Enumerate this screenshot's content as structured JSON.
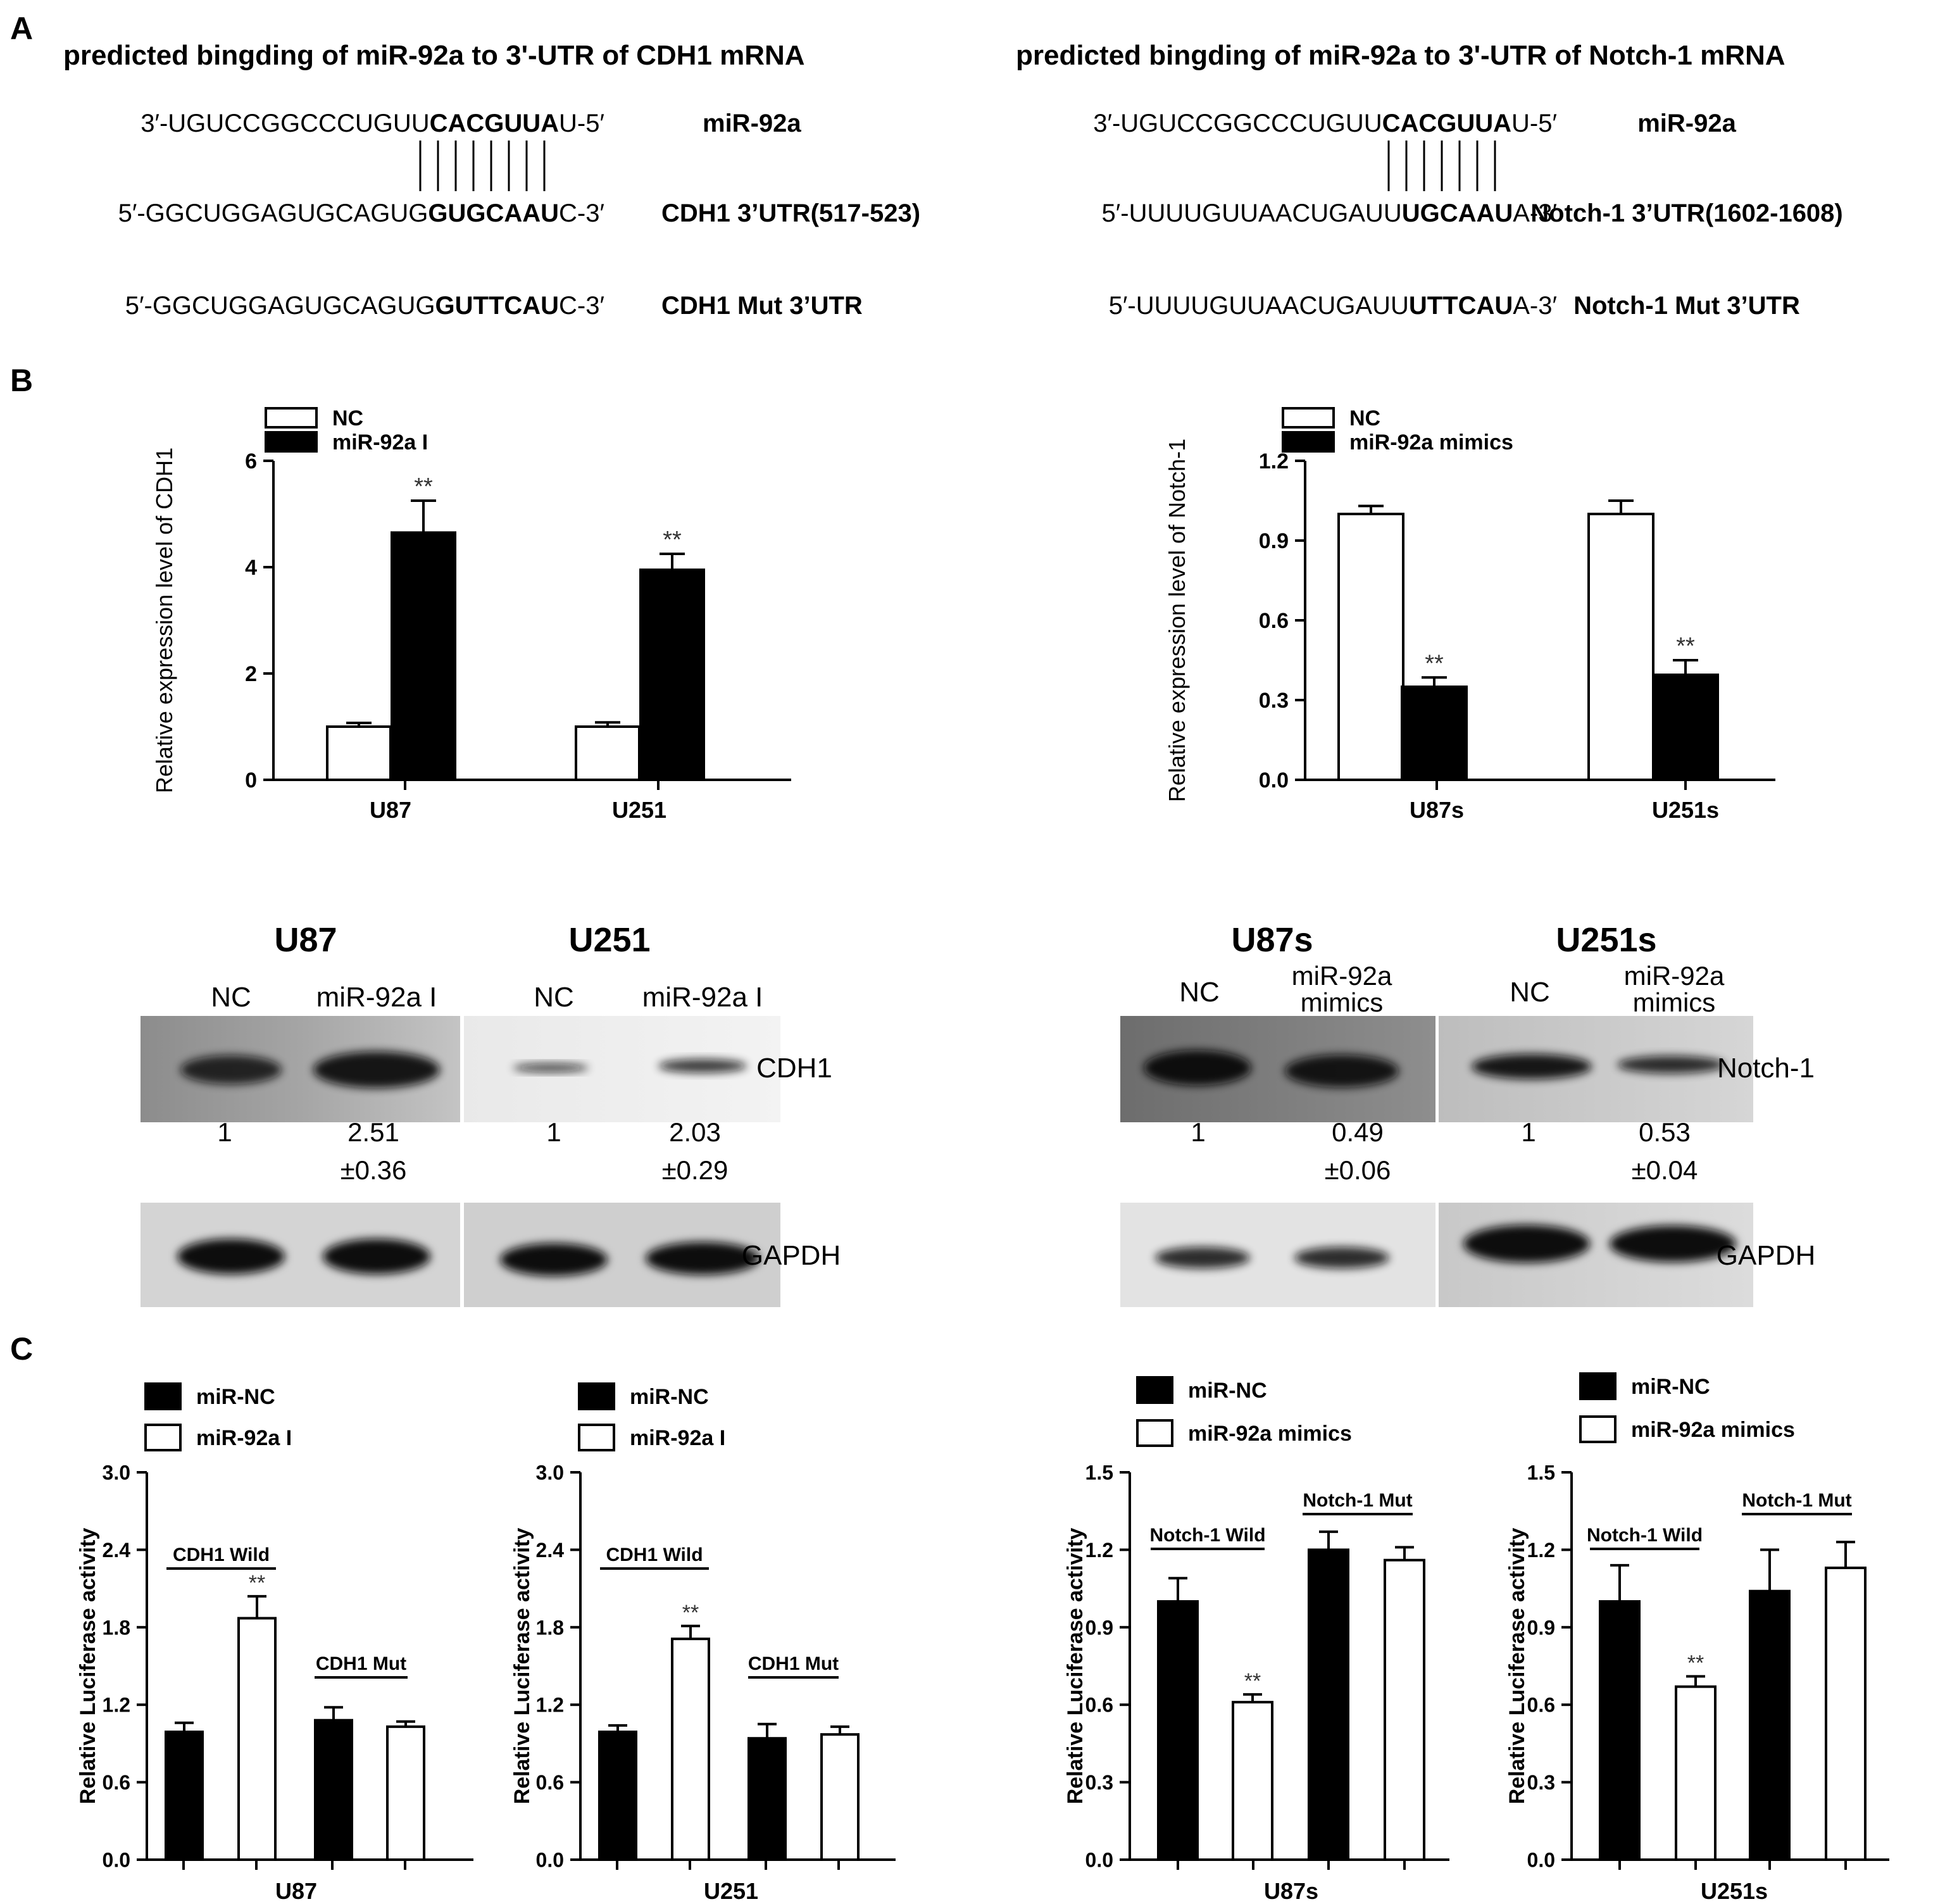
{
  "panel_labels": [
    "A",
    "B",
    "C"
  ],
  "panelA": [
    {
      "title": "predicted bingding of miR-92a to 3'-UTR of CDH1 mRNA",
      "rows": [
        {
          "pre": "3′-UGUCCGGCCCUGUU",
          "bold": "CACGUUA",
          "post": "U-5′",
          "label": "miR-92a"
        },
        {
          "pre": "5′-GGCUGGAGUGCAGUG",
          "bold": "GUGCAAU",
          "post": "C-3′",
          "label": "CDH1 3’UTR(517-523)"
        },
        {
          "pre": "5′-GGCUGGAGUGCAGUG",
          "bold": "GUTTCAU",
          "post": "C-3′",
          "label": "CDH1 Mut 3’UTR"
        }
      ]
    },
    {
      "title": "predicted bingding of miR-92a to 3'-UTR of Notch-1 mRNA",
      "rows": [
        {
          "pre": "3′-UGUCCGGCCCUGUU",
          "bold": "CACGUUA",
          "post": "U-5′",
          "label": "miR-92a"
        },
        {
          "pre": "5′-UUUUGUUAACUGAUU",
          "bold": "UGCAAU",
          "post": "A-3′",
          "label": "Notch-1 3’UTR(1602-1608)"
        },
        {
          "pre": "5′-UUUUGUUAACUGAUU",
          "bold": "UTTCAU",
          "post": "A-3′",
          "label": "Notch-1 Mut 3’UTR"
        }
      ]
    }
  ],
  "western_blots": [
    {
      "cell_lines": [
        {
          "name": "U87",
          "lanes": [
            "NC",
            "miR-92a I"
          ],
          "quant": [
            "1",
            "2.51",
            "±0.36"
          ]
        },
        {
          "name": "U251",
          "lanes": [
            "NC",
            "miR-92a I"
          ],
          "quant": [
            "1",
            "2.03",
            "±0.29"
          ]
        }
      ],
      "target_label": "CDH1",
      "control_label": "GAPDH"
    },
    {
      "cell_lines": [
        {
          "name": "U87s",
          "lanes": [
            "NC",
            "miR-92a mimics"
          ],
          "quant": [
            "1",
            "0.49",
            "±0.06"
          ]
        },
        {
          "name": "U251s",
          "lanes": [
            "NC",
            "miR-92a mimics"
          ],
          "quant": [
            "1",
            "0.53",
            "±0.04"
          ]
        }
      ],
      "target_label": "Notch-1",
      "control_label": "GAPDH"
    }
  ],
  "chart_data": [
    {
      "id": "B1",
      "type": "bar",
      "categories": [
        "U87",
        "U251"
      ],
      "ylabel": "Relative expression level of CDH1",
      "ylim": [
        0,
        6
      ],
      "yticks": [
        "0",
        "2",
        "4",
        "6"
      ],
      "series": [
        {
          "name": "NC",
          "fill": "#ffffff",
          "values": [
            1.0,
            1.0
          ],
          "errors": [
            0.07,
            0.08
          ]
        },
        {
          "name": "miR-92a I",
          "fill": "#000000",
          "values": [
            4.65,
            3.95
          ],
          "errors": [
            0.6,
            0.3
          ]
        }
      ],
      "significance": [
        {
          "category": "U87",
          "series": "miR-92a I",
          "label": "**"
        },
        {
          "category": "U251",
          "series": "miR-92a I",
          "label": "**"
        }
      ]
    },
    {
      "id": "B2",
      "type": "bar",
      "categories": [
        "U87s",
        "U251s"
      ],
      "ylabel": "Relative expression level of Notch-1",
      "ylim": [
        0,
        1.2
      ],
      "yticks": [
        "0.0",
        "0.3",
        "0.6",
        "0.9",
        "1.2"
      ],
      "series": [
        {
          "name": "NC",
          "fill": "#ffffff",
          "values": [
            1.0,
            1.0
          ],
          "errors": [
            0.03,
            0.05
          ]
        },
        {
          "name": "miR-92a mimics",
          "fill": "#000000",
          "values": [
            0.35,
            0.395
          ],
          "errors": [
            0.035,
            0.055
          ]
        }
      ],
      "significance": [
        {
          "category": "U87s",
          "series": "miR-92a mimics",
          "label": "**"
        },
        {
          "category": "U251s",
          "series": "miR-92a mimics",
          "label": "**"
        }
      ]
    },
    {
      "id": "C1",
      "type": "bar",
      "categories": [
        "CDH1 Wild",
        "CDH1 Mut"
      ],
      "xlabel": "U87",
      "ylabel": "Relative Luciferase activity",
      "ylim": [
        0,
        3.0
      ],
      "yticks": [
        "0.0",
        "0.6",
        "1.2",
        "1.8",
        "2.4",
        "3.0"
      ],
      "series": [
        {
          "name": "miR-NC",
          "fill": "#000000",
          "values": [
            0.99,
            1.08
          ],
          "errors": [
            0.07,
            0.1
          ]
        },
        {
          "name": "miR-92a I",
          "fill": "#ffffff",
          "values": [
            1.87,
            1.03
          ],
          "errors": [
            0.17,
            0.04
          ]
        }
      ],
      "significance": [
        {
          "category": "CDH1 Wild",
          "series": "miR-92a I",
          "label": "**"
        }
      ]
    },
    {
      "id": "C2",
      "type": "bar",
      "categories": [
        "CDH1 Wild",
        "CDH1 Mut"
      ],
      "xlabel": "U251",
      "ylabel": "Relative Luciferase activity",
      "ylim": [
        0,
        3.0
      ],
      "yticks": [
        "0.0",
        "0.6",
        "1.2",
        "1.8",
        "2.4",
        "3.0"
      ],
      "series": [
        {
          "name": "miR-NC",
          "fill": "#000000",
          "values": [
            0.99,
            0.94
          ],
          "errors": [
            0.05,
            0.11
          ]
        },
        {
          "name": "miR-92a I",
          "fill": "#ffffff",
          "values": [
            1.71,
            0.97
          ],
          "errors": [
            0.1,
            0.06
          ]
        }
      ],
      "significance": [
        {
          "category": "CDH1 Wild",
          "series": "miR-92a I",
          "label": "**"
        }
      ]
    },
    {
      "id": "C3",
      "type": "bar",
      "categories": [
        "Notch-1 Wild",
        "Notch-1 Mut"
      ],
      "xlabel": "U87s",
      "ylabel": "Relative Luciferase activity",
      "ylim": [
        0,
        1.5
      ],
      "yticks": [
        "0.0",
        "0.3",
        "0.6",
        "0.9",
        "1.2",
        "1.5"
      ],
      "series": [
        {
          "name": "miR-NC",
          "fill": "#000000",
          "values": [
            1.0,
            1.2
          ],
          "errors": [
            0.09,
            0.07
          ]
        },
        {
          "name": "miR-92a mimics",
          "fill": "#ffffff",
          "values": [
            0.61,
            1.16
          ],
          "errors": [
            0.03,
            0.05
          ]
        }
      ],
      "significance": [
        {
          "category": "Notch-1 Wild",
          "series": "miR-92a mimics",
          "label": "**"
        }
      ]
    },
    {
      "id": "C4",
      "type": "bar",
      "categories": [
        "Notch-1 Wild",
        "Notch-1 Mut"
      ],
      "xlabel": "U251s",
      "ylabel": "Relative Luciferase activity",
      "ylim": [
        0,
        1.5
      ],
      "yticks": [
        "0.0",
        "0.3",
        "0.6",
        "0.9",
        "1.2",
        "1.5"
      ],
      "series": [
        {
          "name": "miR-NC",
          "fill": "#000000",
          "values": [
            1.0,
            1.04
          ],
          "errors": [
            0.14,
            0.16
          ]
        },
        {
          "name": "miR-92a mimics",
          "fill": "#ffffff",
          "values": [
            0.67,
            1.13
          ],
          "errors": [
            0.04,
            0.1
          ]
        }
      ],
      "significance": [
        {
          "category": "Notch-1 Wild",
          "series": "miR-92a mimics",
          "label": "**"
        }
      ]
    }
  ]
}
